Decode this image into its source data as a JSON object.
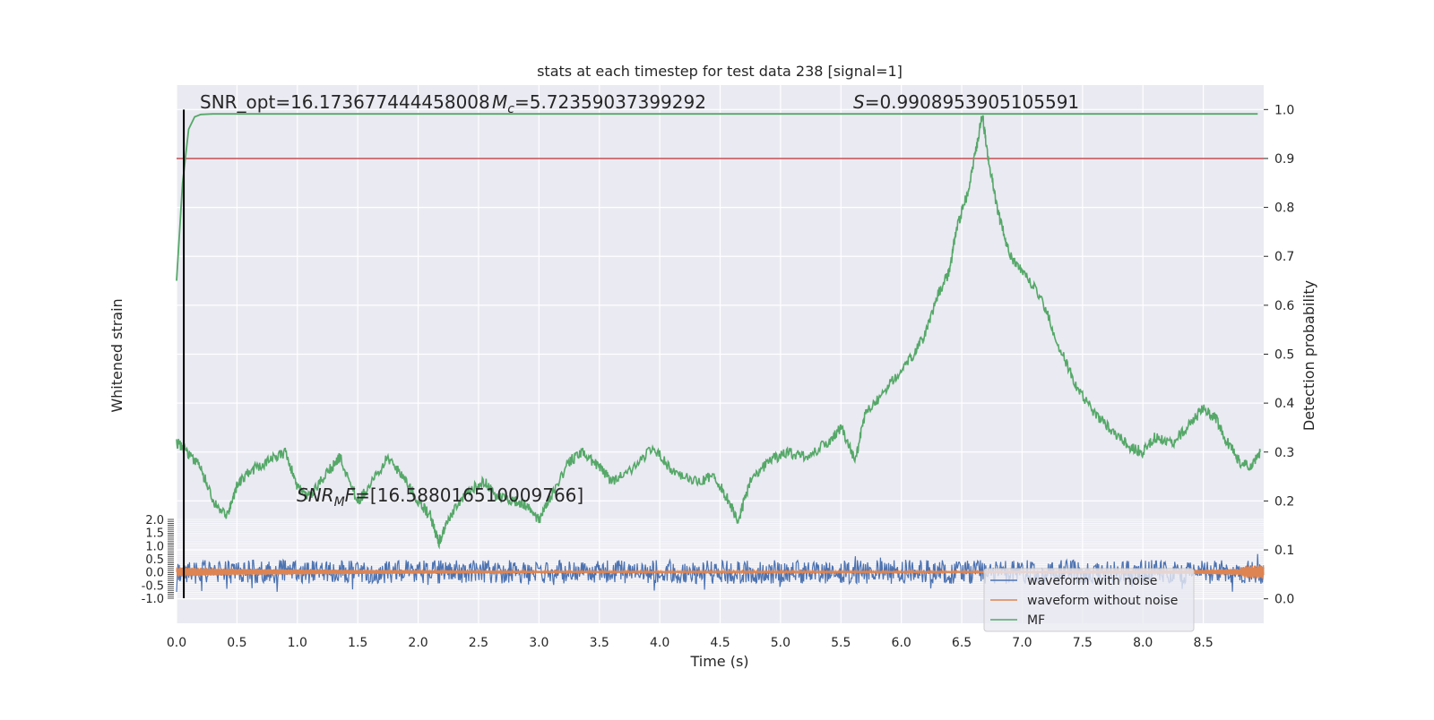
{
  "chart_data": {
    "type": "line",
    "title": "stats at each timestep for test data 238 [signal=1]",
    "xlabel": "Time (s)",
    "ylabel_left": "Whitened strain",
    "ylabel_right": "Detection probability",
    "xlim": [
      0.0,
      9.0
    ],
    "ylim_right": [
      -0.05,
      1.05
    ],
    "ylim_left": [
      -1.0,
      2.0
    ],
    "x_ticks": [
      "0.0",
      "0.5",
      "1.0",
      "1.5",
      "2.0",
      "2.5",
      "3.0",
      "3.5",
      "4.0",
      "4.5",
      "5.0",
      "5.5",
      "6.0",
      "6.5",
      "7.0",
      "7.5",
      "8.0",
      "8.5"
    ],
    "y_ticks_right": [
      "0.0",
      "0.1",
      "0.2",
      "0.3",
      "0.4",
      "0.5",
      "0.6",
      "0.7",
      "0.8",
      "0.9",
      "1.0"
    ],
    "y_ticks_left": [
      "-1.0",
      "-0.5",
      "0.0",
      "0.5",
      "1.0",
      "1.5",
      "2.0"
    ],
    "grid": true,
    "threshold": 0.9,
    "threshold_color": "#c44e52",
    "marker_time": 0.06,
    "legend_position": "lower-right",
    "series": [
      {
        "name": "waveform with noise",
        "color": "#4c72b0",
        "axis": "left",
        "noise_amplitude": 0.45
      },
      {
        "name": "waveform without noise",
        "color": "#dd8452",
        "axis": "left",
        "envelope": [
          [
            0.0,
            0.18
          ],
          [
            0.5,
            0.12
          ],
          [
            1.5,
            0.08
          ],
          [
            3.0,
            0.04
          ],
          [
            5.0,
            0.03
          ],
          [
            7.0,
            0.04
          ],
          [
            8.5,
            0.08
          ],
          [
            8.8,
            0.12
          ],
          [
            8.85,
            0.24
          ],
          [
            9.0,
            0.26
          ]
        ]
      },
      {
        "name": "MF",
        "color": "#55a868",
        "axis": "right",
        "x": [
          0.0,
          0.05,
          0.1,
          0.15,
          0.2,
          0.3,
          0.5,
          1.0,
          2.0,
          3.0,
          4.0,
          5.0,
          6.0,
          7.0,
          8.0,
          8.95
        ],
        "y": [
          0.65,
          0.85,
          0.96,
          0.985,
          0.99,
          0.991,
          0.991,
          0.991,
          0.991,
          0.991,
          0.991,
          0.991,
          0.991,
          0.991,
          0.991,
          0.991
        ]
      },
      {
        "name": "S",
        "color": "#55a868",
        "axis": "right",
        "x": [
          0.0,
          0.08,
          0.2,
          0.3,
          0.42,
          0.5,
          0.6,
          0.75,
          0.9,
          1.0,
          1.1,
          1.25,
          1.35,
          1.5,
          1.6,
          1.75,
          1.9,
          2.0,
          2.1,
          2.17,
          2.25,
          2.4,
          2.55,
          2.65,
          2.8,
          2.9,
          3.0,
          3.1,
          3.25,
          3.35,
          3.5,
          3.6,
          3.75,
          3.95,
          4.1,
          4.3,
          4.45,
          4.55,
          4.65,
          4.75,
          4.9,
          5.05,
          5.2,
          5.4,
          5.5,
          5.62,
          5.7,
          5.85,
          6.0,
          6.1,
          6.2,
          6.3,
          6.4,
          6.45,
          6.55,
          6.62,
          6.67,
          6.72,
          6.8,
          6.9,
          7.0,
          7.15,
          7.3,
          7.45,
          7.6,
          7.75,
          7.9,
          8.0,
          8.1,
          8.25,
          8.4,
          8.5,
          8.6,
          8.7,
          8.8,
          8.9,
          8.97
        ],
        "y": [
          0.32,
          0.3,
          0.27,
          0.2,
          0.17,
          0.23,
          0.26,
          0.28,
          0.3,
          0.23,
          0.21,
          0.26,
          0.29,
          0.2,
          0.23,
          0.29,
          0.24,
          0.2,
          0.17,
          0.115,
          0.16,
          0.22,
          0.24,
          0.21,
          0.2,
          0.19,
          0.16,
          0.21,
          0.28,
          0.3,
          0.27,
          0.24,
          0.26,
          0.31,
          0.26,
          0.24,
          0.25,
          0.21,
          0.16,
          0.24,
          0.28,
          0.3,
          0.29,
          0.32,
          0.35,
          0.28,
          0.38,
          0.42,
          0.47,
          0.5,
          0.54,
          0.62,
          0.67,
          0.75,
          0.83,
          0.92,
          0.99,
          0.9,
          0.79,
          0.7,
          0.67,
          0.62,
          0.52,
          0.43,
          0.38,
          0.34,
          0.31,
          0.3,
          0.33,
          0.32,
          0.36,
          0.39,
          0.37,
          0.32,
          0.28,
          0.27,
          0.3
        ]
      }
    ],
    "annotations": {
      "snr_opt": "SNR_opt=16.173677444458008",
      "mc_symbol": "M",
      "mc_sub": "c",
      "mc_value": "=5.72359037399292",
      "s_symbol": "S",
      "s_value": "=0.9908953905105591",
      "snr_mf_prefix": "SNR",
      "snr_mf_sub": "M",
      "snr_mf_f": "F",
      "snr_mf_value": "=[16.588016510009766]"
    }
  }
}
